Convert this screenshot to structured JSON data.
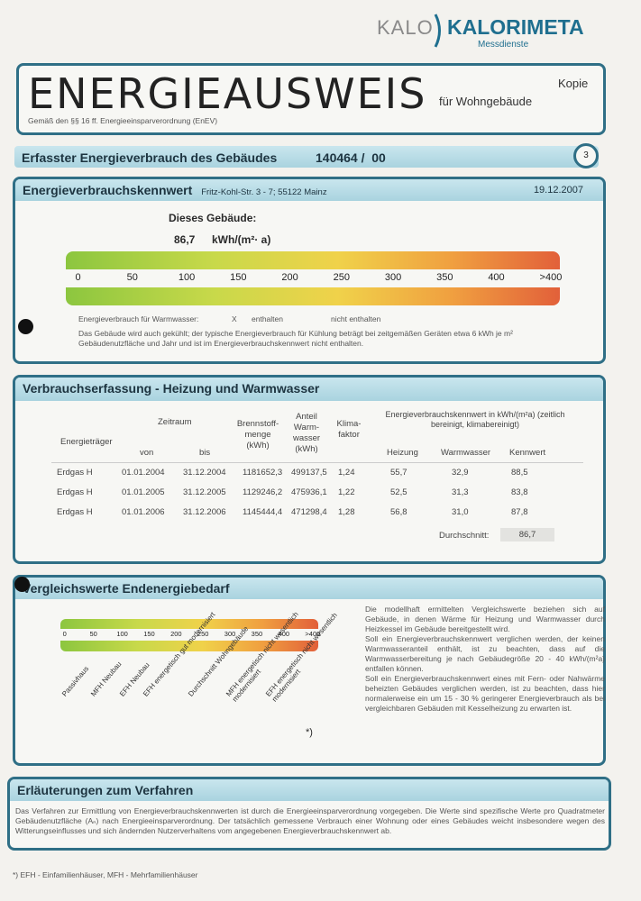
{
  "logo": {
    "kalo": "KALO",
    "brand": "KALORIMETA",
    "sub": "Messdienste"
  },
  "title": {
    "main": "ENERGIEAUSWEIS",
    "sub": "für Wohngebäude",
    "copy": "Kopie",
    "basis": "Gemäß den §§ 16 ff. Energieeinsparverordnung (EnEV)"
  },
  "band": {
    "label": "Erfasster Energieverbrauch des Gebäudes",
    "id": "140464 /  00",
    "page": "3"
  },
  "kennwert": {
    "title": "Energieverbrauchskennwert",
    "address": "Fritz-Kohl-Str. 3 - 7; 55122 Mainz",
    "date": "19.12.2007",
    "this_building": "Dieses Gebäude:",
    "value": "86,7",
    "unit": "kWh/(m²· a)",
    "scale": [
      "0",
      "50",
      "100",
      "150",
      "200",
      "250",
      "300",
      "350",
      "400",
      ">400"
    ],
    "ww_label": "Energieverbrauch für Warmwasser:",
    "ww_x": "X",
    "ww_included": "enthalten",
    "ww_not": "nicht enthalten",
    "note": "Das Gebäude wird auch gekühlt; der typische Energieverbrauch für Kühlung beträgt bei zeitgemäßen Geräten etwa 6 kWh je m² Gebäudenutzfläche und Jahr und ist im Energieverbrauchskennwert nicht enthalten."
  },
  "erfassung": {
    "title": "Verbrauchserfassung - Heizung und Warmwasser",
    "h_traeger": "Energieträger",
    "h_zeitraum": "Zeitraum",
    "h_von": "von",
    "h_bis": "bis",
    "h_brenn": "Brennstoff-menge (kWh)",
    "h_anteil": "Anteil Warm-wasser (kWh)",
    "h_klima": "Klima-faktor",
    "h_kenn": "Energieverbrauchskennwert in kWh/(m²a) (zeitlich bereinigt, klimabereinigt)",
    "h_heiz": "Heizung",
    "h_ww": "Warmwasser",
    "h_kw": "Kennwert",
    "rows": [
      {
        "traeger": "Erdgas H",
        "von": "01.01.2004",
        "bis": "31.12.2004",
        "brenn": "1181652,3",
        "anteil": "499137,5",
        "klima": "1,24",
        "heiz": "55,7",
        "ww": "32,9",
        "kw": "88,5"
      },
      {
        "traeger": "Erdgas H",
        "von": "01.01.2005",
        "bis": "31.12.2005",
        "brenn": "1129246,2",
        "anteil": "475936,1",
        "klima": "1,22",
        "heiz": "52,5",
        "ww": "31,3",
        "kw": "83,8"
      },
      {
        "traeger": "Erdgas H",
        "von": "01.01.2006",
        "bis": "31.12.2006",
        "brenn": "1145444,4",
        "anteil": "471298,4",
        "klima": "1,28",
        "heiz": "56,8",
        "ww": "31,0",
        "kw": "87,8"
      }
    ],
    "avg_label": "Durchschnitt:",
    "avg_value": "86,7"
  },
  "vergleich": {
    "title": "Vergleichswerte Endenergiebedarf",
    "scale": [
      "0",
      "50",
      "100",
      "150",
      "200",
      "250",
      "300",
      "350",
      "400",
      ">400"
    ],
    "labels": [
      "Passivhaus",
      "MFH Neubau",
      "EFH Neubau",
      "EFH energetisch gut modernisiert",
      "Durchschnitt Wohngebäude",
      "MFH energetisch nicht wesentlich modernisiert",
      "EFH energetisch nicht wesentlich modernisiert"
    ],
    "star": "*)",
    "text1": "Die modellhaft ermittelten Vergleichswerte beziehen sich auf Gebäude, in denen Wärme für Heizung und Warmwasser durch Heizkessel im Gebäude bereitgestellt wird.",
    "text2": "Soll ein Energieverbrauchskennwert verglichen werden, der keinen Warmwasseranteil enthält, ist zu beachten, dass auf die Warmwasserbereitung je nach Gebäudegröße 20 - 40 kWh/(m²a) entfallen können.",
    "text3": "Soll ein Energieverbrauchskennwert eines mit Fern- oder Nahwärme beheizten Gebäudes verglichen werden, ist zu beachten, dass hier normalerweise ein um 15 - 30 % geringerer Energieverbrauch als bei vergleichbaren Gebäuden mit Kesselheizung zu erwarten ist."
  },
  "erlaeuterung": {
    "title": "Erläuterungen zum Verfahren",
    "text": "Das Verfahren zur Ermittlung von Energieverbrauchskennwerten ist durch die Energieeinsparverordnung vorgegeben. Die Werte sind spezifische Werte pro Quadratmeter Gebäudenutzfläche (Aₙ) nach Energieeinsparverordnung. Der tatsächlich gemessene Verbrauch einer Wohnung oder eines Gebäudes weicht insbesondere wegen des Witterungseinflusses und sich ändernden Nutzerverhaltens vom angegebenen Energieverbrauchskennwert ab."
  },
  "footnote": "*)  EFH - Einfamilienhäuser, MFH - Mehrfamilienhäuser",
  "colors": {
    "frame": "#2f6f86",
    "header": "#a9d3df",
    "brand": "#1f6f8f"
  }
}
